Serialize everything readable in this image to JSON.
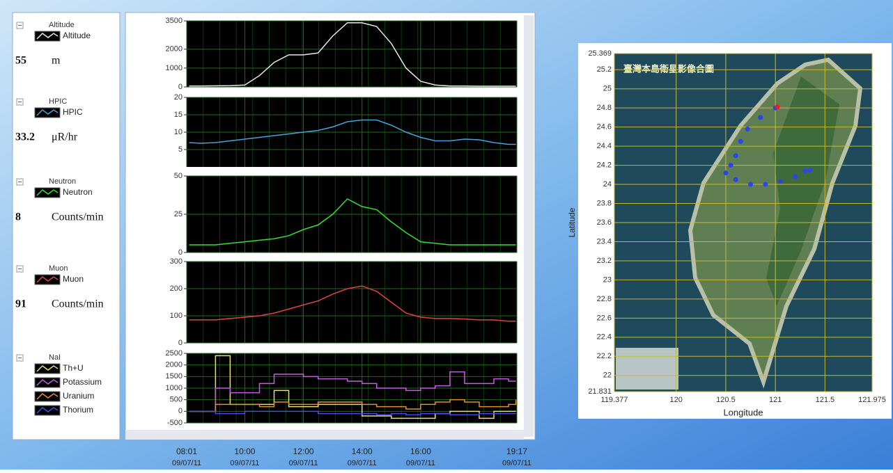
{
  "legend_panel": {
    "groups": [
      {
        "title": "Altitude",
        "reading": 55,
        "unit": "m"
      },
      {
        "title": "HPIC",
        "reading": 33.2,
        "unit": "μR/hr"
      },
      {
        "title": "Neutron",
        "reading": 8,
        "unit": "Counts/min"
      },
      {
        "title": "Muon",
        "reading": 91,
        "unit": "Counts/min"
      },
      {
        "title": "NaI"
      }
    ]
  },
  "time_axis": {
    "xlim": [
      8.0167,
      19.2833
    ],
    "xticks": [
      {
        "value": 8.0167,
        "label": "08:01"
      },
      {
        "value": 10,
        "label": "10:00"
      },
      {
        "value": 12,
        "label": "12:00"
      },
      {
        "value": 14,
        "label": "14:00"
      },
      {
        "value": 16,
        "label": "16:00"
      },
      {
        "value": 19.2833,
        "label": "19:17"
      }
    ],
    "dates": [
      "09/07/11",
      "09/07/11",
      "09/07/11",
      "09/07/11",
      "09/07/11",
      "09/07/11"
    ]
  },
  "chart_data": [
    {
      "type": "line",
      "ylim": [
        0,
        3500
      ],
      "yticks": [
        0,
        1000,
        2000,
        3500
      ],
      "x": [
        8.1,
        8.5,
        9,
        9.5,
        10,
        10.5,
        11,
        11.5,
        12,
        12.5,
        13,
        13.5,
        14,
        14.5,
        15,
        15.5,
        16,
        16.5,
        17,
        17.5,
        18,
        18.5,
        19,
        19.25
      ],
      "series": [
        {
          "name": "Altitude",
          "color": "#e8e8e8",
          "values": [
            50,
            50,
            60,
            70,
            100,
            600,
            1300,
            1700,
            1700,
            1800,
            2700,
            3400,
            3400,
            3200,
            2300,
            1000,
            300,
            100,
            50,
            50,
            40,
            40,
            40,
            40
          ]
        }
      ]
    },
    {
      "type": "line",
      "ylim": [
        0,
        20
      ],
      "yticks": [
        5,
        10,
        15,
        20
      ],
      "x": [
        8.1,
        8.5,
        9,
        9.5,
        10,
        10.5,
        11,
        11.5,
        12,
        12.5,
        13,
        13.5,
        14,
        14.5,
        15,
        15.5,
        16,
        16.5,
        17,
        17.5,
        18,
        18.5,
        19,
        19.25
      ],
      "series": [
        {
          "name": "HPIC",
          "color": "#4aa3d4",
          "values": [
            7,
            6.8,
            7,
            7.5,
            8,
            8.5,
            9,
            9.5,
            10,
            10.5,
            11.5,
            13,
            13.5,
            13.5,
            12,
            10,
            8.5,
            7.5,
            7.5,
            8,
            7.8,
            7,
            6.5,
            6.5
          ]
        }
      ]
    },
    {
      "type": "line",
      "ylim": [
        0,
        50
      ],
      "yticks": [
        0,
        25,
        50
      ],
      "x": [
        8.1,
        8.5,
        9,
        9.5,
        10,
        10.5,
        11,
        11.5,
        12,
        12.5,
        13,
        13.5,
        14,
        14.5,
        15,
        15.5,
        16,
        16.5,
        17,
        17.5,
        18,
        18.5,
        19,
        19.25
      ],
      "series": [
        {
          "name": "Neutron",
          "color": "#33e033",
          "values": [
            5,
            5,
            5,
            6,
            7,
            8,
            9,
            11,
            15,
            18,
            25,
            35,
            30,
            28,
            20,
            13,
            7,
            6,
            5,
            5,
            5,
            5,
            5,
            5
          ]
        }
      ]
    },
    {
      "type": "line",
      "ylim": [
        0,
        300
      ],
      "yticks": [
        0,
        100,
        200,
        300
      ],
      "x": [
        8.1,
        8.5,
        9,
        9.5,
        10,
        10.5,
        11,
        11.5,
        12,
        12.5,
        13,
        13.5,
        14,
        14.5,
        15,
        15.5,
        16,
        16.5,
        17,
        17.5,
        18,
        18.5,
        19,
        19.25
      ],
      "series": [
        {
          "name": "Muon",
          "color": "#e04444",
          "values": [
            85,
            85,
            85,
            90,
            95,
            100,
            110,
            125,
            140,
            155,
            180,
            200,
            210,
            190,
            150,
            110,
            95,
            90,
            90,
            88,
            85,
            85,
            80,
            80
          ]
        }
      ]
    },
    {
      "type": "line",
      "step": true,
      "ylim": [
        -500,
        2500
      ],
      "yticks": [
        -500,
        0,
        500,
        1000,
        1500,
        2000,
        2500
      ],
      "x": [
        8.1,
        8.5,
        9,
        9.5,
        10,
        10.5,
        11,
        11.5,
        12,
        12.5,
        13,
        13.5,
        14,
        14.5,
        15,
        15.5,
        16,
        16.5,
        17,
        17.5,
        18,
        18.5,
        19,
        19.25
      ],
      "series": [
        {
          "name": "Th+U",
          "color": "#e6e070",
          "values": [
            0,
            0,
            2400,
            300,
            300,
            300,
            900,
            200,
            200,
            300,
            300,
            300,
            -200,
            -200,
            -300,
            -300,
            -300,
            -100,
            0,
            0,
            -300,
            0,
            0,
            0
          ]
        },
        {
          "name": "Potassium",
          "color": "#c060e0",
          "values": [
            0,
            0,
            1000,
            800,
            800,
            1200,
            1600,
            1600,
            1500,
            1400,
            1400,
            1300,
            1200,
            1000,
            1000,
            900,
            1000,
            1100,
            1700,
            1200,
            1200,
            1400,
            1300,
            1300
          ]
        },
        {
          "name": "Uranium",
          "color": "#e09030",
          "values": [
            0,
            0,
            300,
            300,
            300,
            200,
            400,
            300,
            300,
            400,
            400,
            400,
            300,
            200,
            200,
            100,
            300,
            400,
            500,
            400,
            200,
            200,
            300,
            500
          ]
        },
        {
          "name": "Thorium",
          "color": "#4050e0",
          "values": [
            0,
            0,
            -100,
            -100,
            0,
            0,
            0,
            0,
            0,
            -100,
            -100,
            -100,
            -100,
            -150,
            -100,
            -150,
            -100,
            -100,
            -150,
            -150,
            -100,
            -100,
            -100,
            -100
          ]
        }
      ]
    },
    {
      "type": "scatter",
      "title": "臺灣本島衛星影像合圖",
      "xlabel": "Longitude",
      "ylabel": "Latitude",
      "xlim": [
        119.377,
        121.975
      ],
      "ylim": [
        21.831,
        25.369
      ],
      "xticks": [
        119.377,
        120,
        120.5,
        121,
        121.5,
        121.975
      ],
      "yticks": [
        21.831,
        22,
        22.2,
        22.4,
        22.6,
        22.8,
        23,
        23.2,
        23.4,
        23.6,
        23.8,
        24,
        24.2,
        24.4,
        24.6,
        24.8,
        25,
        25.2,
        25.369
      ],
      "grid": true,
      "series": [
        {
          "color": "#2a45e8",
          "x": [
            121.0,
            120.85,
            120.72,
            120.65,
            120.6,
            120.55,
            120.5,
            120.6,
            120.75,
            120.9,
            121.05,
            121.2,
            121.3,
            121.35
          ],
          "values": [
            24.8,
            24.7,
            24.58,
            24.45,
            24.3,
            24.2,
            24.12,
            24.05,
            24.0,
            24.0,
            24.03,
            24.08,
            24.14,
            24.15
          ]
        },
        {
          "color": "#e82020",
          "x": [
            121.02
          ],
          "values": [
            24.81
          ]
        }
      ]
    }
  ]
}
